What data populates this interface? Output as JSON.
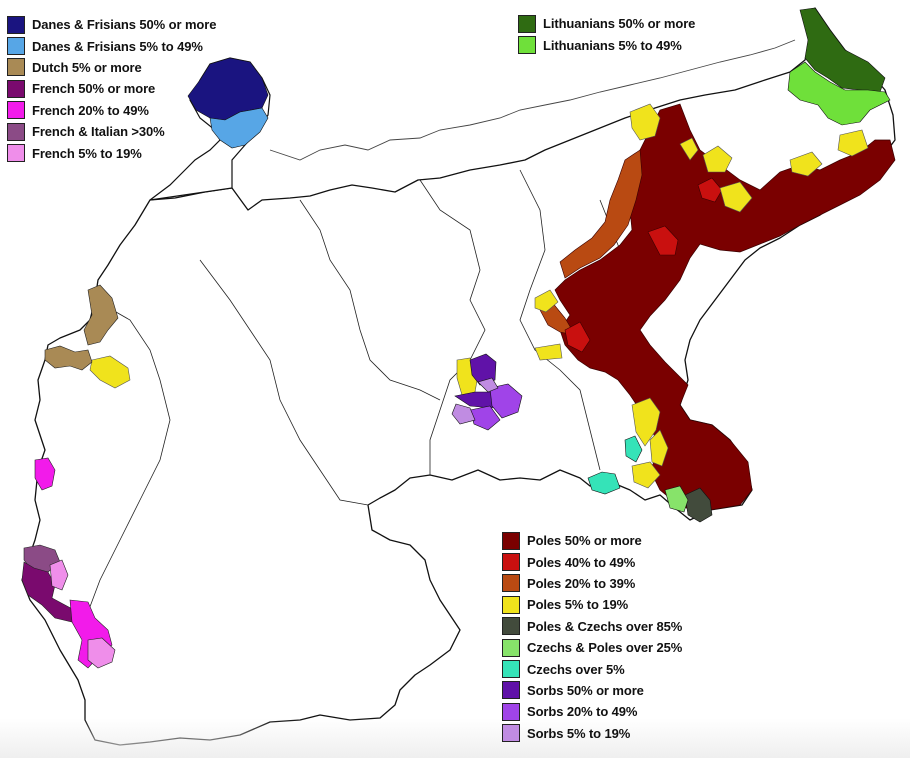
{
  "legends": {
    "top_left": [
      {
        "label": "Danes & Frisians 50% or more",
        "color": "#1a1480"
      },
      {
        "label": "Danes & Frisians 5% to 49%",
        "color": "#57a6e6"
      },
      {
        "label": "Dutch 5% or more",
        "color": "#a98a55"
      },
      {
        "label": "French 50% or more",
        "color": "#7a0a6e"
      },
      {
        "label": "French 20% to 49%",
        "color": "#f21bea"
      },
      {
        "label": "French & Italian >30%",
        "color": "#8b4b86"
      },
      {
        "label": "French 5% to 19%",
        "color": "#ef8eea"
      }
    ],
    "top_right": [
      {
        "label": "Lithuanians 50% or more",
        "color": "#2f6b12"
      },
      {
        "label": "Lithuanians 5% to 49%",
        "color": "#6fe03a"
      }
    ],
    "bottom": [
      {
        "label": "Poles 50% or more",
        "color": "#7a0000"
      },
      {
        "label": "Poles 40% to 49%",
        "color": "#c9100f"
      },
      {
        "label": "Poles 20% to 39%",
        "color": "#b94a12"
      },
      {
        "label": "Poles 5% to 19%",
        "color": "#f0e31c"
      },
      {
        "label": "Poles & Czechs over 85%",
        "color": "#424b3c"
      },
      {
        "label": "Czechs & Poles over 25%",
        "color": "#87e36a"
      },
      {
        "label": "Czechs over 5%",
        "color": "#35e3b8"
      },
      {
        "label": "Sorbs 50% or more",
        "color": "#6012a8"
      },
      {
        "label": "Sorbs 20% to 49%",
        "color": "#a044e8"
      },
      {
        "label": "Sorbs 5% to 19%",
        "color": "#c08ce2"
      }
    ]
  }
}
